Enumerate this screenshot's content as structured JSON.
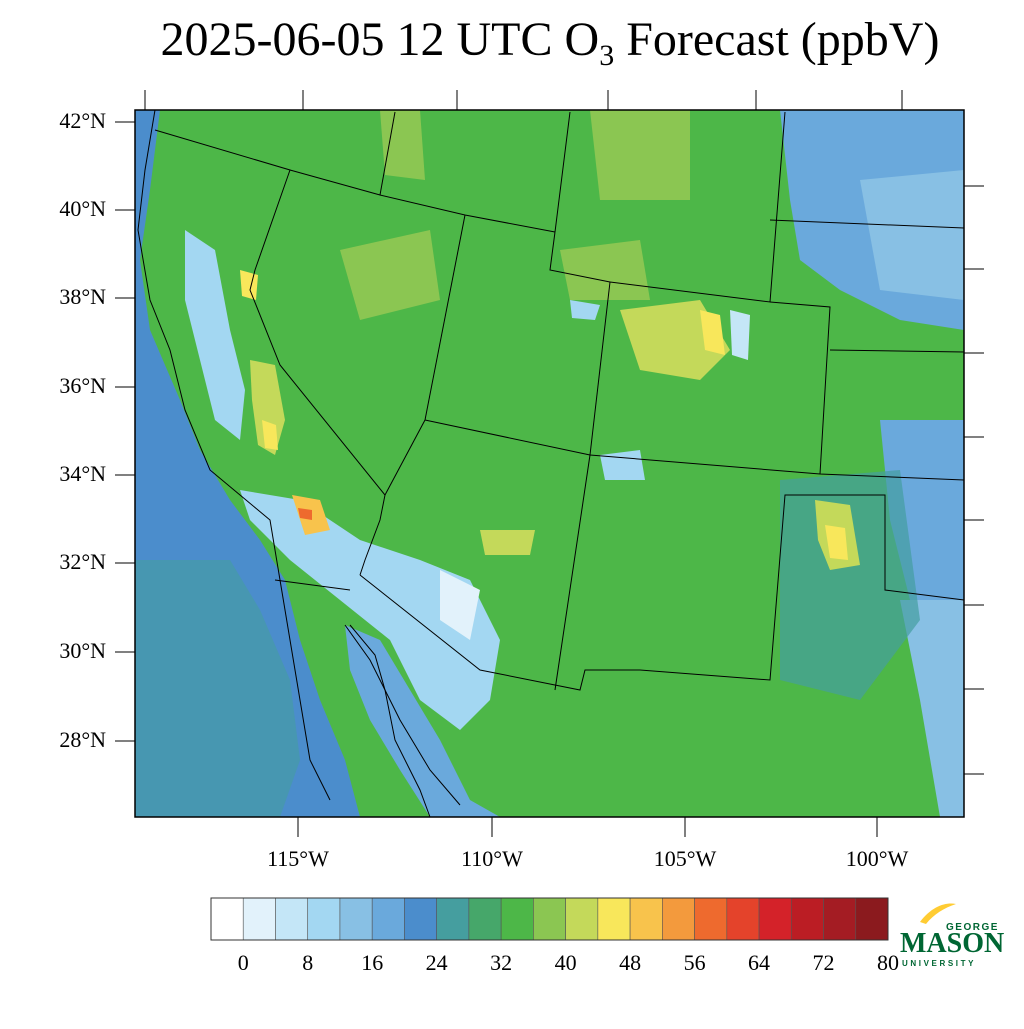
{
  "title": {
    "prefix": "2025-06-05 12 UTC O",
    "subscript": "3",
    "suffix": " Forecast (ppbV)"
  },
  "map": {
    "lat_labels": [
      "42°N",
      "40°N",
      "38°N",
      "36°N",
      "34°N",
      "32°N",
      "30°N",
      "28°N"
    ],
    "lon_labels": [
      "115°W",
      "110°W",
      "105°W",
      "100°W"
    ],
    "background_color": "#3f8fcc"
  },
  "colorbar": {
    "colors": [
      "#ffffff",
      "#e2f2fb",
      "#c4e6f7",
      "#a3d7f2",
      "#88c0e4",
      "#6aa9dc",
      "#4b8dcc",
      "#459e9f",
      "#46a76a",
      "#4db748",
      "#8bc652",
      "#c4d95a",
      "#f8e75b",
      "#f8c34c",
      "#f39a3d",
      "#ee6a2e",
      "#e4432b",
      "#d42229",
      "#bb1d24",
      "#a41c23",
      "#8b1a1e"
    ],
    "labels": [
      "0",
      "8",
      "16",
      "24",
      "32",
      "40",
      "48",
      "56",
      "64",
      "72",
      "80"
    ]
  },
  "logo": {
    "line1": "GEORGE",
    "line2": "MASON",
    "line3": "UNIVERSITY",
    "color_green": "#006633",
    "color_gold": "#ffcc33"
  }
}
